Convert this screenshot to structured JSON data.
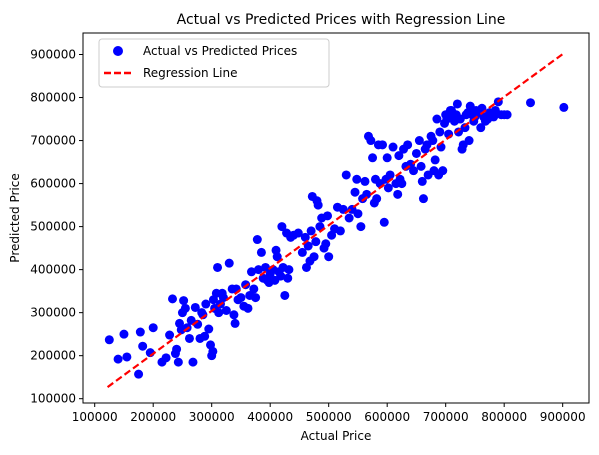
{
  "chart_data": {
    "type": "scatter",
    "title": "Actual vs Predicted Prices with Regression Line",
    "xlabel": "Actual Price",
    "ylabel": "Predicted Price",
    "xlim": [
      80000,
      945000
    ],
    "ylim": [
      90000,
      950000
    ],
    "xticks": [
      100000,
      200000,
      300000,
      400000,
      500000,
      600000,
      700000,
      800000,
      900000
    ],
    "yticks": [
      100000,
      200000,
      300000,
      400000,
      500000,
      600000,
      700000,
      800000,
      900000
    ],
    "xtick_labels": [
      "100000",
      "200000",
      "300000",
      "400000",
      "500000",
      "600000",
      "700000",
      "800000",
      "900000"
    ],
    "ytick_labels": [
      "100000",
      "200000",
      "300000",
      "400000",
      "500000",
      "600000",
      "700000",
      "800000",
      "900000"
    ],
    "grid": false,
    "legend_position": "top-left",
    "series": [
      {
        "name": "Actual vs Predicted Prices",
        "kind": "scatter",
        "color": "#0000ff",
        "points": [
          [
            125000,
            237000
          ],
          [
            140000,
            192000
          ],
          [
            150000,
            250000
          ],
          [
            155000,
            197000
          ],
          [
            175000,
            157000
          ],
          [
            178000,
            255000
          ],
          [
            182000,
            222000
          ],
          [
            195000,
            207000
          ],
          [
            200000,
            265000
          ],
          [
            215000,
            185000
          ],
          [
            222000,
            195000
          ],
          [
            228000,
            248000
          ],
          [
            233000,
            332000
          ],
          [
            238000,
            205000
          ],
          [
            240000,
            215000
          ],
          [
            243000,
            185000
          ],
          [
            245000,
            275000
          ],
          [
            248000,
            260000
          ],
          [
            250000,
            300000
          ],
          [
            252000,
            328000
          ],
          [
            255000,
            310000
          ],
          [
            258000,
            265000
          ],
          [
            262000,
            240000
          ],
          [
            265000,
            282000
          ],
          [
            268000,
            185000
          ],
          [
            272000,
            312000
          ],
          [
            276000,
            273000
          ],
          [
            280000,
            240000
          ],
          [
            283000,
            300000
          ],
          [
            285000,
            295000
          ],
          [
            288000,
            245000
          ],
          [
            290000,
            320000
          ],
          [
            295000,
            262000
          ],
          [
            298000,
            225000
          ],
          [
            300000,
            200000
          ],
          [
            302000,
            210000
          ],
          [
            303000,
            330000
          ],
          [
            305000,
            310000
          ],
          [
            308000,
            345000
          ],
          [
            310000,
            405000
          ],
          [
            312000,
            300000
          ],
          [
            315000,
            320000
          ],
          [
            318000,
            345000
          ],
          [
            320000,
            335000
          ],
          [
            325000,
            305000
          ],
          [
            330000,
            415000
          ],
          [
            335000,
            355000
          ],
          [
            338000,
            295000
          ],
          [
            340000,
            275000
          ],
          [
            342000,
            355000
          ],
          [
            345000,
            330000
          ],
          [
            350000,
            335000
          ],
          [
            355000,
            315000
          ],
          [
            358000,
            365000
          ],
          [
            362000,
            310000
          ],
          [
            365000,
            340000
          ],
          [
            368000,
            395000
          ],
          [
            372000,
            355000
          ],
          [
            375000,
            335000
          ],
          [
            378000,
            470000
          ],
          [
            380000,
            400000
          ],
          [
            385000,
            440000
          ],
          [
            388000,
            380000
          ],
          [
            392000,
            405000
          ],
          [
            395000,
            375000
          ],
          [
            398000,
            370000
          ],
          [
            400000,
            390000
          ],
          [
            405000,
            400000
          ],
          [
            408000,
            375000
          ],
          [
            410000,
            445000
          ],
          [
            412000,
            430000
          ],
          [
            415000,
            395000
          ],
          [
            418000,
            385000
          ],
          [
            420000,
            500000
          ],
          [
            422000,
            405000
          ],
          [
            425000,
            340000
          ],
          [
            428000,
            485000
          ],
          [
            430000,
            380000
          ],
          [
            432000,
            400000
          ],
          [
            435000,
            475000
          ],
          [
            440000,
            480000
          ],
          [
            448000,
            485000
          ],
          [
            455000,
            440000
          ],
          [
            460000,
            475000
          ],
          [
            462000,
            405000
          ],
          [
            465000,
            455000
          ],
          [
            468000,
            420000
          ],
          [
            470000,
            490000
          ],
          [
            472000,
            570000
          ],
          [
            475000,
            430000
          ],
          [
            478000,
            465000
          ],
          [
            480000,
            560000
          ],
          [
            482000,
            550000
          ],
          [
            485000,
            500000
          ],
          [
            488000,
            520000
          ],
          [
            492000,
            450000
          ],
          [
            495000,
            460000
          ],
          [
            498000,
            525000
          ],
          [
            500000,
            430000
          ],
          [
            505000,
            480000
          ],
          [
            510000,
            495000
          ],
          [
            515000,
            545000
          ],
          [
            520000,
            490000
          ],
          [
            525000,
            540000
          ],
          [
            530000,
            620000
          ],
          [
            535000,
            520000
          ],
          [
            540000,
            540000
          ],
          [
            545000,
            580000
          ],
          [
            548000,
            610000
          ],
          [
            550000,
            530000
          ],
          [
            555000,
            500000
          ],
          [
            558000,
            565000
          ],
          [
            562000,
            605000
          ],
          [
            565000,
            575000
          ],
          [
            568000,
            710000
          ],
          [
            572000,
            700000
          ],
          [
            575000,
            660000
          ],
          [
            578000,
            555000
          ],
          [
            580000,
            610000
          ],
          [
            582000,
            565000
          ],
          [
            585000,
            690000
          ],
          [
            588000,
            600000
          ],
          [
            592000,
            690000
          ],
          [
            595000,
            510000
          ],
          [
            598000,
            610000
          ],
          [
            600000,
            660000
          ],
          [
            602000,
            590000
          ],
          [
            605000,
            620000
          ],
          [
            610000,
            685000
          ],
          [
            615000,
            600000
          ],
          [
            618000,
            575000
          ],
          [
            620000,
            665000
          ],
          [
            622000,
            610000
          ],
          [
            625000,
            600000
          ],
          [
            628000,
            680000
          ],
          [
            632000,
            640000
          ],
          [
            635000,
            690000
          ],
          [
            640000,
            645000
          ],
          [
            645000,
            630000
          ],
          [
            650000,
            670000
          ],
          [
            655000,
            700000
          ],
          [
            658000,
            640000
          ],
          [
            660000,
            605000
          ],
          [
            662000,
            565000
          ],
          [
            665000,
            680000
          ],
          [
            668000,
            690000
          ],
          [
            670000,
            620000
          ],
          [
            675000,
            710000
          ],
          [
            678000,
            700000
          ],
          [
            680000,
            630000
          ],
          [
            682000,
            655000
          ],
          [
            685000,
            750000
          ],
          [
            688000,
            620000
          ],
          [
            690000,
            720000
          ],
          [
            692000,
            685000
          ],
          [
            695000,
            630000
          ],
          [
            698000,
            740000
          ],
          [
            700000,
            760000
          ],
          [
            702000,
            750000
          ],
          [
            705000,
            715000
          ],
          [
            708000,
            770000
          ],
          [
            710000,
            770000
          ],
          [
            712000,
            755000
          ],
          [
            715000,
            745000
          ],
          [
            718000,
            760000
          ],
          [
            720000,
            785000
          ],
          [
            722000,
            720000
          ],
          [
            725000,
            750000
          ],
          [
            728000,
            680000
          ],
          [
            730000,
            690000
          ],
          [
            733000,
            730000
          ],
          [
            735000,
            760000
          ],
          [
            738000,
            765000
          ],
          [
            740000,
            700000
          ],
          [
            742000,
            780000
          ],
          [
            745000,
            760000
          ],
          [
            748000,
            745000
          ],
          [
            750000,
            755000
          ],
          [
            752000,
            770000
          ],
          [
            755000,
            765000
          ],
          [
            760000,
            730000
          ],
          [
            762000,
            775000
          ],
          [
            765000,
            755000
          ],
          [
            768000,
            745000
          ],
          [
            772000,
            750000
          ],
          [
            775000,
            765000
          ],
          [
            778000,
            760000
          ],
          [
            782000,
            755000
          ],
          [
            785000,
            770000
          ],
          [
            790000,
            790000
          ],
          [
            795000,
            760000
          ],
          [
            800000,
            760000
          ],
          [
            805000,
            760000
          ],
          [
            845000,
            788000
          ],
          [
            902000,
            777000
          ]
        ]
      },
      {
        "name": "Regression Line",
        "kind": "line",
        "style": "dashed",
        "color": "#ff0000",
        "points": [
          [
            122000,
            127000
          ],
          [
            902000,
            903000
          ]
        ]
      }
    ]
  }
}
